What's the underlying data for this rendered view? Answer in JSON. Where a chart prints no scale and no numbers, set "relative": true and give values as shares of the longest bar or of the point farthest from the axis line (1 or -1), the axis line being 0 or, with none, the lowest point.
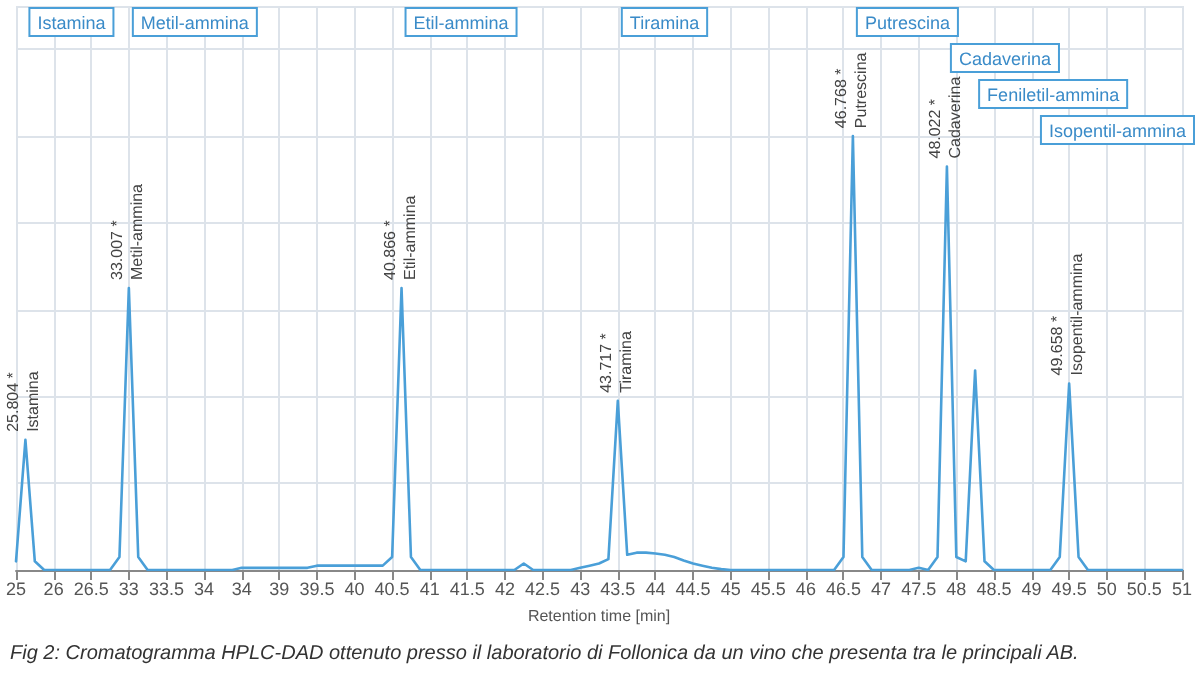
{
  "chart_data": {
    "type": "line",
    "relative": true,
    "title": "Fig 2: Cromatogramma HPLC-DAD ottenuto presso il laboratorio di Follonica da un vino che presenta tra le principali AB.",
    "xlabel": "Retention time [min]",
    "categories": [
      "25",
      null,
      null,
      null,
      "26",
      null,
      null,
      null,
      "26.5",
      null,
      null,
      null,
      "33",
      null,
      null,
      null,
      "33.5",
      null,
      null,
      null,
      "34",
      null,
      null,
      null,
      "34",
      null,
      null,
      null,
      "39",
      null,
      null,
      null,
      "39.5",
      null,
      null,
      null,
      "40",
      null,
      null,
      null,
      "40.5",
      null,
      null,
      null,
      "41",
      null,
      null,
      null,
      "41.5",
      null,
      null,
      null,
      "42",
      null,
      null,
      null,
      "42.5",
      null,
      null,
      null,
      "43",
      null,
      null,
      null,
      "43.5",
      null,
      null,
      null,
      "44",
      null,
      null,
      null,
      "44.5",
      null,
      null,
      null,
      "45",
      null,
      null,
      null,
      "45.5",
      null,
      null,
      null,
      "46",
      null,
      null,
      null,
      "46.5",
      null,
      null,
      null,
      "47",
      null,
      null,
      null,
      "47.5",
      null,
      null,
      null,
      "48",
      null,
      null,
      null,
      "48.5",
      null,
      null,
      null,
      "49",
      null,
      null,
      null,
      "49.5",
      null,
      null,
      null,
      "50",
      null,
      null,
      null,
      "50.5",
      null,
      null,
      null,
      "51"
    ],
    "series": [
      {
        "color": "#4a9fd8",
        "values": [
          0.02,
          0.3,
          0.02,
          0,
          0,
          0,
          0,
          0,
          0,
          0,
          0,
          0.03,
          0.65,
          0.03,
          0,
          0,
          0,
          0,
          0,
          0,
          0,
          0,
          0,
          0,
          0.005,
          0.005,
          0.005,
          0.005,
          0.005,
          0.005,
          0.005,
          0.005,
          0.01,
          0.01,
          0.01,
          0.01,
          0.01,
          0.01,
          0.01,
          0.01,
          0.03,
          0.65,
          0.03,
          0,
          0,
          0,
          0,
          0,
          0,
          0,
          0,
          0,
          0,
          0,
          0.015,
          0,
          0,
          0,
          0,
          0,
          0.005,
          0.01,
          0.015,
          0.025,
          0.39,
          0.035,
          0.04,
          0.04,
          0.038,
          0.035,
          0.03,
          0.022,
          0.015,
          0.01,
          0.005,
          0.002,
          0,
          0,
          0,
          0,
          0,
          0,
          0,
          0,
          0,
          0,
          0,
          0,
          0.03,
          1.0,
          0.03,
          0,
          0,
          0,
          0,
          0,
          0.005,
          0,
          0.03,
          0.93,
          0.03,
          0.02,
          0.46,
          0.02,
          0,
          0,
          0,
          0,
          0,
          0,
          0,
          0.03,
          0.43,
          0.03,
          0,
          0,
          0,
          0,
          0,
          0,
          0,
          0,
          0,
          0,
          0
        ]
      }
    ],
    "annotations": [
      "Istamina",
      "Metil-ammina",
      "Etil-ammina",
      "Tiramina",
      "Putrescina",
      "Cadaverina",
      "Feniletil-ammina",
      "Isopentil-ammina",
      {
        "text": "25.804 *\nIstamina",
        "y": 0.3
      },
      {
        "text": "33.007 *\nMetil-ammina",
        "y": 0.65
      },
      {
        "text": "40.866 *\nEtil-ammina",
        "y": 0.65
      },
      {
        "text": "43.717 *\nTiramina",
        "y": 0.39
      },
      {
        "text": "46.768 *\nPutrescina",
        "y": 1.0
      },
      {
        "text": "48.022 *\nCadaverina",
        "y": 0.93
      },
      {
        "text": "49.658 *\nIsopentil-ammina",
        "y": 0.43
      }
    ],
    "grid": true,
    "marker": "none",
    "line_style": "solid"
  }
}
